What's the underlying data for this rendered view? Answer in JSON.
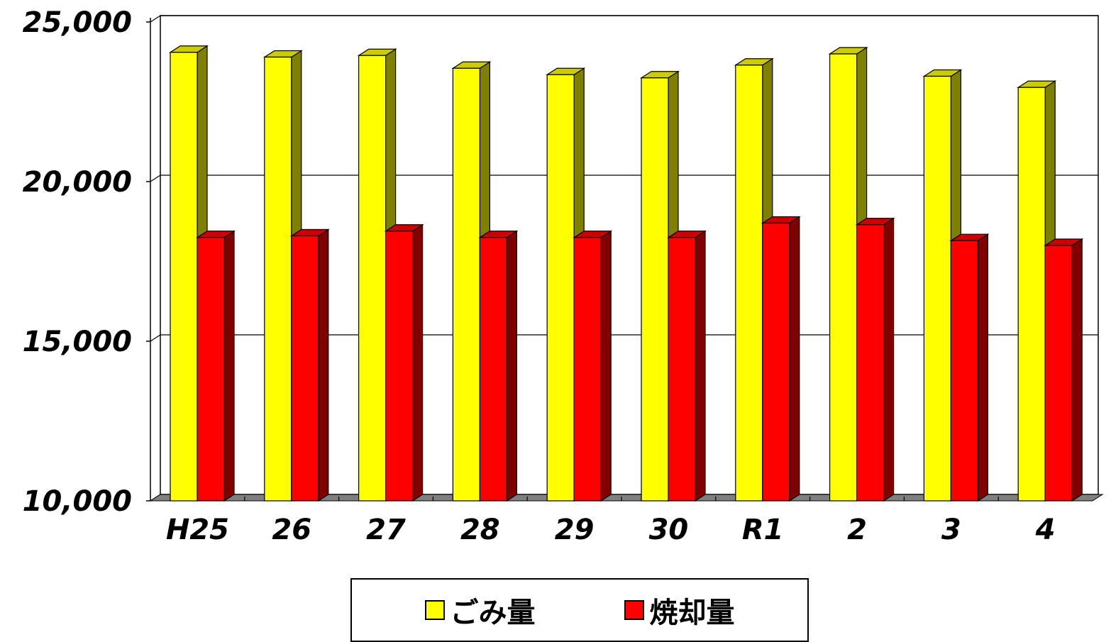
{
  "chart_data": {
    "type": "bar",
    "categories": [
      "H25",
      "26",
      "27",
      "28",
      "29",
      "30",
      "R1",
      "2",
      "3",
      "4"
    ],
    "series": [
      {
        "name": "ごみ量",
        "values": [
          24050,
          23900,
          23950,
          23550,
          23350,
          23250,
          23650,
          24000,
          23300,
          22950
        ],
        "color": "#ffff00",
        "side_color": "#808000",
        "top_color": "#cccc00"
      },
      {
        "name": "焼却量",
        "values": [
          18250,
          18300,
          18450,
          18250,
          18250,
          18250,
          18700,
          18650,
          18150,
          18000
        ],
        "color": "#ff0000",
        "side_color": "#800000",
        "top_color": "#cc0000"
      }
    ],
    "yticks": [
      "10,000",
      "15,000",
      "20,000",
      "25,000"
    ],
    "ylim": [
      10000,
      25000
    ],
    "grid": true,
    "legend_position": "bottom",
    "style": "3d-column"
  }
}
